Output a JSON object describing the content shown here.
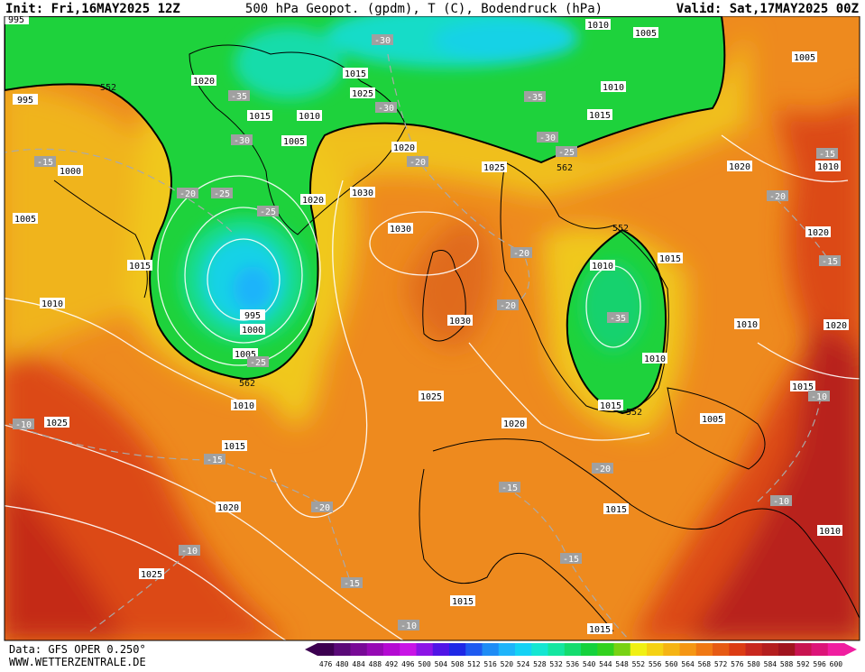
{
  "header": {
    "init": "Init: Fri,16MAY2025 12Z",
    "title": "500 hPa Geopot. (gpdm), T (C), Bodendruck (hPa)",
    "valid": "Valid: Sat,17MAY2025 00Z"
  },
  "footer": {
    "data": "Data: GFS OPER 0.250°",
    "site": "WWW.WETTERZENTRALE.DE"
  },
  "map": {
    "pressure_labels": [
      995,
      1010,
      1005,
      1005,
      995,
      1020,
      1015,
      1025,
      1010,
      1015,
      1010,
      1015,
      1005,
      1020,
      1025,
      1020,
      1010,
      1000,
      1030,
      1020,
      1005,
      1030,
      1020,
      1015,
      1010,
      1015,
      1010,
      995,
      1000,
      1030,
      1010,
      1020,
      1005,
      1010,
      1025,
      1015,
      1015,
      1010,
      1005,
      1025,
      1020,
      1015,
      1020,
      1015,
      1010,
      1025,
      1015,
      1015
    ],
    "temperature_labels": [
      -30,
      -35,
      -35,
      -30,
      -30,
      -30,
      -25,
      -20,
      -15,
      -25,
      -20,
      -15,
      -20,
      -25,
      -20,
      -15,
      -20,
      -35,
      -25,
      -10,
      -10,
      -15,
      -20,
      -15,
      -20,
      -10,
      -10,
      -15,
      -15,
      -10
    ],
    "geopotential_labels": [
      552,
      562,
      552,
      562,
      552
    ]
  },
  "colorbar": {
    "ticks": [
      476,
      480,
      484,
      488,
      492,
      496,
      500,
      504,
      508,
      512,
      516,
      520,
      524,
      528,
      532,
      536,
      540,
      544,
      548,
      552,
      556,
      560,
      564,
      568,
      572,
      576,
      580,
      584,
      588,
      592,
      596,
      600
    ],
    "colors": [
      "#3c0050",
      "#5a0a78",
      "#780a96",
      "#960ab4",
      "#b40ad2",
      "#c814e6",
      "#8c14e6",
      "#5014e6",
      "#1e28e6",
      "#1e5af0",
      "#1e8cf5",
      "#1eb4fa",
      "#14d2f5",
      "#14e6d2",
      "#14e6a0",
      "#14dc6e",
      "#14d23c",
      "#32d21e",
      "#78d214",
      "#f0f014",
      "#f5d214",
      "#f5b414",
      "#f59614",
      "#f07814",
      "#e65a14",
      "#dc3c14",
      "#c8281e",
      "#b41e1e",
      "#a0141e",
      "#c81450",
      "#dc1478",
      "#f01ea0"
    ]
  }
}
